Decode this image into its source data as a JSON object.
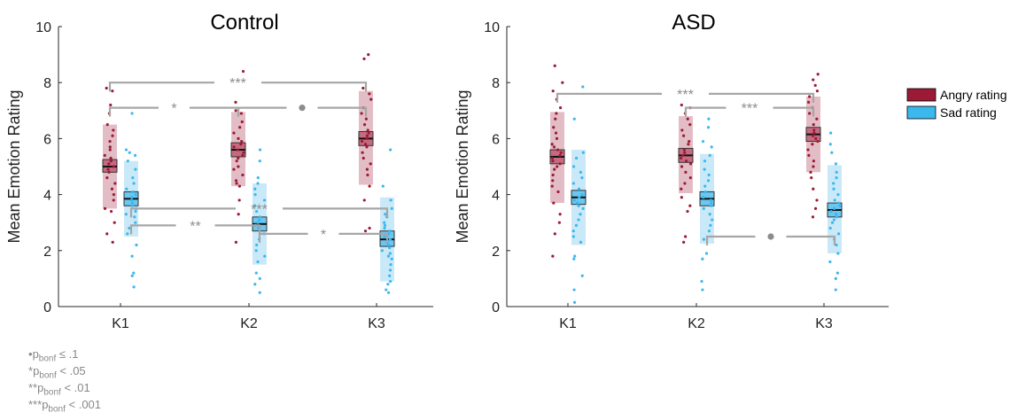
{
  "y_axis_label": "Mean Emotion Rating",
  "legend": {
    "placement": "right",
    "items": [
      {
        "label": "Angry rating",
        "color": "#9b1b36"
      },
      {
        "label": "Sad rating",
        "color": "#3bb8ee"
      }
    ]
  },
  "notes": [
    {
      "stars": "•",
      "p": "p",
      "sub": "bonf",
      "rel": " ≤ .1"
    },
    {
      "stars": "*",
      "p": "p",
      "sub": "bonf",
      "rel": " < .05"
    },
    {
      "stars": "**",
      "p": "p",
      "sub": "bonf",
      "rel": " < .01"
    },
    {
      "stars": "***",
      "p": "p",
      "sub": "bonf",
      "rel": " < .001"
    }
  ],
  "chart_data": [
    {
      "type": "scatter",
      "title": "Control",
      "ylabel": "Mean Emotion Rating",
      "ylim": [
        0,
        10
      ],
      "yticks": [
        0,
        2,
        4,
        6,
        8,
        10
      ],
      "categories": [
        "K1",
        "K2",
        "K3"
      ],
      "series": [
        {
          "name": "Angry rating",
          "color": "#9b1b36",
          "groups": [
            {
              "mean": 5.0,
              "ci": [
                4.8,
                5.25
              ],
              "sd": [
                3.5,
                6.5
              ],
              "points": [
                7.8,
                7.7,
                7.2,
                6.9,
                6.5,
                6.3,
                6.1,
                5.9,
                5.7,
                5.6,
                5.4,
                5.3,
                5.2,
                5.1,
                5.0,
                4.9,
                4.8,
                4.6,
                4.4,
                4.2,
                4.0,
                3.8,
                3.5,
                3.4,
                3.0,
                2.6,
                2.3
              ]
            },
            {
              "mean": 5.6,
              "ci": [
                5.35,
                5.85
              ],
              "sd": [
                4.3,
                6.95
              ],
              "points": [
                8.4,
                7.3,
                7.0,
                6.9,
                6.6,
                6.4,
                6.2,
                6.0,
                5.9,
                5.8,
                5.7,
                5.6,
                5.5,
                5.4,
                5.3,
                5.2,
                5.0,
                4.9,
                4.7,
                4.5,
                4.4,
                4.3,
                3.8,
                3.3,
                2.3
              ]
            },
            {
              "mean": 6.0,
              "ci": [
                5.75,
                6.25
              ],
              "sd": [
                4.35,
                7.7
              ],
              "points": [
                9.0,
                8.85,
                7.8,
                7.6,
                7.4,
                7.1,
                6.9,
                6.7,
                6.5,
                6.3,
                6.2,
                6.1,
                6.0,
                5.9,
                5.8,
                5.7,
                5.5,
                5.3,
                5.1,
                4.9,
                4.7,
                4.3,
                3.8,
                2.8,
                2.7
              ]
            }
          ]
        },
        {
          "name": "Sad rating",
          "color": "#3bb8ee",
          "groups": [
            {
              "mean": 3.85,
              "ci": [
                3.6,
                4.1
              ],
              "sd": [
                2.5,
                5.2
              ],
              "points": [
                6.9,
                5.6,
                5.5,
                5.4,
                5.2,
                4.9,
                4.6,
                4.4,
                4.2,
                4.1,
                4.0,
                3.9,
                3.8,
                3.7,
                3.6,
                3.5,
                3.4,
                3.3,
                3.2,
                3.0,
                2.8,
                2.6,
                2.2,
                1.8,
                1.2,
                1.1,
                0.7
              ]
            },
            {
              "mean": 2.95,
              "ci": [
                2.7,
                3.2
              ],
              "sd": [
                1.5,
                4.4
              ],
              "points": [
                5.6,
                5.2,
                4.6,
                4.4,
                4.2,
                4.0,
                3.8,
                3.6,
                3.4,
                3.2,
                3.1,
                3.0,
                2.9,
                2.8,
                2.6,
                2.4,
                2.2,
                2.0,
                1.8,
                1.6,
                1.2,
                1.0,
                0.8,
                0.5
              ]
            },
            {
              "mean": 2.4,
              "ci": [
                2.15,
                2.7
              ],
              "sd": [
                0.9,
                3.9
              ],
              "points": [
                5.6,
                4.3,
                3.8,
                3.5,
                3.3,
                3.2,
                3.0,
                2.9,
                2.8,
                2.7,
                2.6,
                2.5,
                2.4,
                2.3,
                2.2,
                2.1,
                2.0,
                1.9,
                1.8,
                1.7,
                1.5,
                1.3,
                1.1,
                0.9,
                0.8,
                0.6,
                0.5
              ]
            }
          ]
        }
      ],
      "comparisons": [
        {
          "series": "Angry rating",
          "from": "K1",
          "to": "K3",
          "level": 8.0,
          "label": "***"
        },
        {
          "series": "Angry rating",
          "from": "K1",
          "to": "K2",
          "level": 7.1,
          "label": "*"
        },
        {
          "series": "Angry rating",
          "from": "K2",
          "to": "K3",
          "level": 7.1,
          "label": "•"
        },
        {
          "series": "Sad rating",
          "from": "K1",
          "to": "K3",
          "level": 3.5,
          "label": "***"
        },
        {
          "series": "Sad rating",
          "from": "K1",
          "to": "K2",
          "level": 2.9,
          "label": "**"
        },
        {
          "series": "Sad rating",
          "from": "K2",
          "to": "K3",
          "level": 2.6,
          "label": "*"
        }
      ]
    },
    {
      "type": "scatter",
      "title": "ASD",
      "ylabel": "Mean Emotion Rating",
      "ylim": [
        0,
        10
      ],
      "yticks": [
        0,
        2,
        4,
        6,
        8,
        10
      ],
      "categories": [
        "K1",
        "K2",
        "K3"
      ],
      "series": [
        {
          "name": "Angry rating",
          "color": "#9b1b36",
          "groups": [
            {
              "mean": 5.35,
              "ci": [
                5.1,
                5.6
              ],
              "sd": [
                3.7,
                6.95
              ],
              "points": [
                8.6,
                8.0,
                7.7,
                7.4,
                7.1,
                6.9,
                6.7,
                6.4,
                6.2,
                6.0,
                5.8,
                5.7,
                5.6,
                5.5,
                5.4,
                5.3,
                5.2,
                5.1,
                5.0,
                4.9,
                4.7,
                4.5,
                4.3,
                4.1,
                3.7,
                3.3,
                3.0,
                2.6,
                1.8
              ]
            },
            {
              "mean": 5.4,
              "ci": [
                5.15,
                5.65
              ],
              "sd": [
                4.05,
                6.8
              ],
              "points": [
                7.2,
                7.1,
                6.9,
                6.7,
                6.5,
                6.3,
                6.1,
                5.9,
                5.8,
                5.6,
                5.5,
                5.4,
                5.3,
                5.2,
                5.1,
                5.0,
                4.8,
                4.6,
                4.4,
                4.2,
                3.9,
                3.6,
                3.4,
                2.5,
                2.3
              ]
            },
            {
              "mean": 6.15,
              "ci": [
                5.9,
                6.4
              ],
              "sd": [
                4.8,
                7.5
              ],
              "points": [
                8.3,
                8.1,
                7.9,
                7.7,
                7.5,
                7.3,
                7.1,
                6.9,
                6.7,
                6.5,
                6.3,
                6.2,
                6.1,
                6.0,
                5.9,
                5.8,
                5.6,
                5.4,
                5.2,
                5.0,
                4.8,
                4.6,
                4.2,
                3.8,
                3.5,
                3.2
              ]
            }
          ]
        },
        {
          "name": "Sad rating",
          "color": "#3bb8ee",
          "groups": [
            {
              "mean": 3.9,
              "ci": [
                3.65,
                4.15
              ],
              "sd": [
                2.2,
                5.6
              ],
              "points": [
                7.85,
                6.7,
                5.5,
                5.3,
                5.0,
                4.8,
                4.6,
                4.4,
                4.2,
                4.0,
                3.9,
                3.8,
                3.7,
                3.6,
                3.5,
                3.3,
                3.1,
                2.9,
                2.7,
                2.5,
                2.3,
                1.8,
                1.7,
                1.1,
                0.6,
                0.15
              ]
            },
            {
              "mean": 3.85,
              "ci": [
                3.6,
                4.1
              ],
              "sd": [
                2.25,
                5.45
              ],
              "points": [
                6.7,
                6.4,
                5.9,
                5.7,
                5.4,
                5.2,
                4.9,
                4.7,
                4.5,
                4.3,
                4.1,
                3.9,
                3.8,
                3.7,
                3.6,
                3.5,
                3.3,
                3.1,
                2.9,
                2.7,
                2.4,
                1.9,
                1.7,
                0.9,
                0.6
              ]
            },
            {
              "mean": 3.45,
              "ci": [
                3.2,
                3.7
              ],
              "sd": [
                1.9,
                5.05
              ],
              "points": [
                6.2,
                5.8,
                5.5,
                5.1,
                4.8,
                4.6,
                4.4,
                4.2,
                4.0,
                3.8,
                3.7,
                3.6,
                3.5,
                3.4,
                3.3,
                3.2,
                3.1,
                3.0,
                2.8,
                2.6,
                2.4,
                2.2,
                1.9,
                1.6,
                1.2,
                1.0,
                0.6
              ]
            }
          ]
        }
      ],
      "comparisons": [
        {
          "series": "Angry rating",
          "from": "K1",
          "to": "K3",
          "level": 7.6,
          "label": "***"
        },
        {
          "series": "Angry rating",
          "from": "K2",
          "to": "K3",
          "level": 7.1,
          "label": "***"
        },
        {
          "series": "Sad rating",
          "from": "K2",
          "to": "K3",
          "level": 2.5,
          "label": "•"
        }
      ]
    }
  ]
}
